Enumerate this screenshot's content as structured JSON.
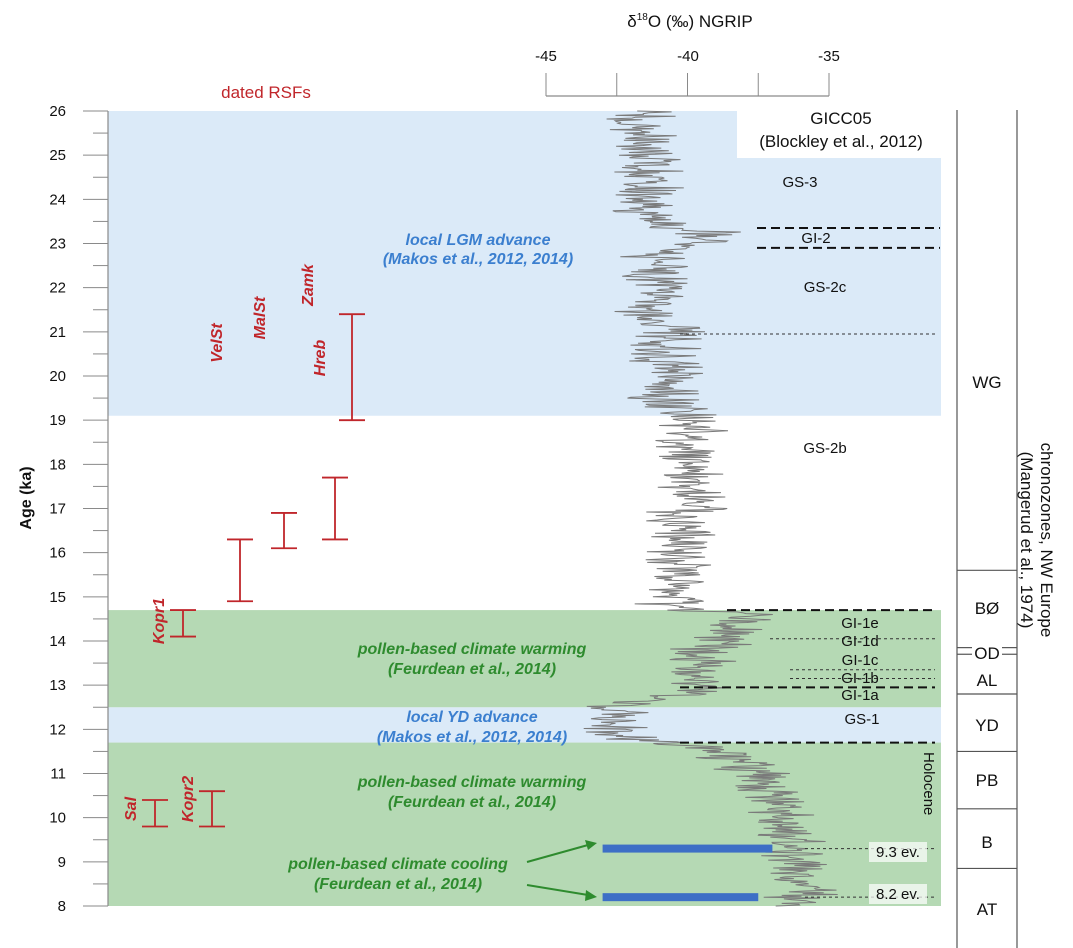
{
  "chart_data": {
    "type": "line",
    "title": "δ18O (‰) NGRIP",
    "top_axis": {
      "label_prefix": "δ",
      "label_sup": "18",
      "label_rest": "O (‰)  NGRIP",
      "ticks": [
        "-45",
        "-40",
        "-35"
      ],
      "range": [
        -45,
        -35
      ]
    },
    "y_axis": {
      "label": "Age (ka)",
      "range": [
        8,
        26
      ],
      "ticks": [
        "8",
        "9",
        "10",
        "11",
        "12",
        "13",
        "14",
        "15",
        "16",
        "17",
        "18",
        "19",
        "20",
        "21",
        "22",
        "23",
        "24",
        "25",
        "26"
      ]
    },
    "rsf_title": "dated RSFs",
    "series": [
      {
        "name": "NGRIP",
        "color": "#808080",
        "anchors": [
          [
            8.0,
            -37.0
          ],
          [
            8.1,
            -36.0
          ],
          [
            8.2,
            -36.5
          ],
          [
            8.3,
            -35.5
          ],
          [
            8.5,
            -36.0
          ],
          [
            8.8,
            -36.2
          ],
          [
            9.0,
            -36.0
          ],
          [
            9.3,
            -36.5
          ],
          [
            9.5,
            -36.2
          ],
          [
            10.0,
            -36.8
          ],
          [
            10.5,
            -37.0
          ],
          [
            11.0,
            -37.5
          ],
          [
            11.3,
            -38.5
          ],
          [
            11.6,
            -39.0
          ],
          [
            11.7,
            -40.5
          ],
          [
            11.8,
            -41.8
          ],
          [
            12.0,
            -42.5
          ],
          [
            12.3,
            -42.8
          ],
          [
            12.5,
            -42.5
          ],
          [
            12.7,
            -41.5
          ],
          [
            12.9,
            -39.0
          ],
          [
            13.1,
            -39.5
          ],
          [
            13.3,
            -40.0
          ],
          [
            13.5,
            -39.5
          ],
          [
            13.7,
            -39.8
          ],
          [
            13.9,
            -39.2
          ],
          [
            14.1,
            -39.0
          ],
          [
            14.3,
            -38.5
          ],
          [
            14.6,
            -38.0
          ],
          [
            14.7,
            -39.5
          ],
          [
            14.8,
            -41.0
          ],
          [
            15.0,
            -40.2
          ],
          [
            15.5,
            -40.0
          ],
          [
            16.0,
            -40.1
          ],
          [
            16.5,
            -40.2
          ],
          [
            17.0,
            -40.0
          ],
          [
            17.5,
            -39.8
          ],
          [
            18.0,
            -40.0
          ],
          [
            18.5,
            -39.9
          ],
          [
            19.0,
            -40.0
          ],
          [
            19.5,
            -40.8
          ],
          [
            20.0,
            -40.5
          ],
          [
            20.5,
            -40.8
          ],
          [
            21.0,
            -40.6
          ],
          [
            21.5,
            -41.5
          ],
          [
            22.0,
            -41.0
          ],
          [
            22.5,
            -41.3
          ],
          [
            22.9,
            -40.5
          ],
          [
            23.0,
            -39.5
          ],
          [
            23.2,
            -39.0
          ],
          [
            23.4,
            -40.5
          ],
          [
            23.7,
            -41.5
          ],
          [
            24.0,
            -41.8
          ],
          [
            24.5,
            -41.2
          ],
          [
            25.0,
            -41.6
          ],
          [
            25.5,
            -41.5
          ],
          [
            26.0,
            -41.8
          ]
        ]
      }
    ],
    "blue_bands": [
      [
        19.1,
        26.0
      ],
      [
        11.7,
        12.5
      ]
    ],
    "green_bands": [
      [
        12.5,
        14.7
      ],
      [
        8.0,
        11.7
      ]
    ],
    "stratigraphy_dashed_thick": [
      23.35,
      22.9,
      14.7,
      12.95,
      11.7
    ],
    "stratigraphy_dashed_thin": [
      20.95,
      14.05,
      13.35,
      13.15,
      9.3,
      8.2
    ],
    "cooling_bars": [
      {
        "age": 9.3,
        "from": -43.0,
        "to": -37.0
      },
      {
        "age": 8.2,
        "from": -43.0,
        "to": -37.5
      }
    ],
    "rsf": [
      {
        "name": "Hreb",
        "min": 19.0,
        "max": 21.4
      },
      {
        "name": "Zamk",
        "min": 16.3,
        "max": 17.7
      },
      {
        "name": "MalSt",
        "min": 16.1,
        "max": 16.9
      },
      {
        "name": "VelSt",
        "min": 14.9,
        "max": 16.3
      },
      {
        "name": "Kopr1",
        "min": 14.1,
        "max": 14.7
      },
      {
        "name": "Kopr2",
        "min": 9.8,
        "max": 10.6
      },
      {
        "name": "Sal",
        "min": 9.8,
        "max": 10.4
      }
    ],
    "annotations": {
      "gicc": "GICC05",
      "gicc_ref": "(Blockley et al., 2012)",
      "lgm_title": "local LGM advance",
      "lgm_ref": "(Makos et al., 2012, 2014)",
      "yd_title": "local YD advance",
      "yd_ref": "(Makos et al., 2012, 2014)",
      "warm_title": "pollen-based climate warming",
      "warm_ref": "(Feurdean et al., 2014)",
      "cool_title": "pollen-based climate cooling",
      "cool_ref": "(Feurdean et al., 2014)"
    },
    "events": [
      "GS-3",
      "GI-2",
      "GS-2c",
      "GS-2b",
      "GI-1e",
      "GI-1d",
      "GI-1c",
      "GI-1b",
      "GI-1a",
      "GS-1",
      "Holocene",
      "9.3 ev.",
      "8.2 ev."
    ],
    "chronozones": {
      "title_1": "chronozones, NW Europe",
      "title_2": "(Mangerud et al., 1974)",
      "labels": [
        "WG",
        "BØ",
        "OD",
        "AL",
        "YD",
        "PB",
        "B",
        "AT"
      ]
    }
  }
}
